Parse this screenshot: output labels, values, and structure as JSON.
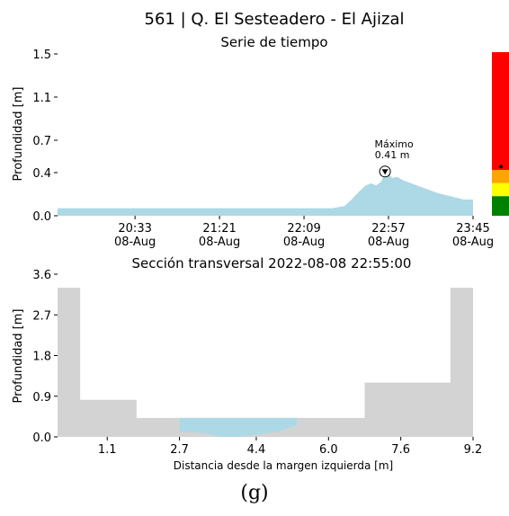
{
  "caption": "(g)",
  "chart_data": [
    {
      "type": "area",
      "title": "561 | Q. El Sesteadero - El Ajizal",
      "subtitle": "Serie de tiempo",
      "ylabel": "Profundidad [m]",
      "xlabel": "",
      "ylim": [
        0,
        1.5
      ],
      "yticks": [
        "0.0",
        "0.4",
        "0.7",
        "1.1",
        "1.5"
      ],
      "xticks": [
        {
          "time": "20:33",
          "date": "08-Aug"
        },
        {
          "time": "21:21",
          "date": "08-Aug"
        },
        {
          "time": "22:09",
          "date": "08-Aug"
        },
        {
          "time": "22:57",
          "date": "08-Aug"
        },
        {
          "time": "23:45",
          "date": "08-Aug"
        }
      ],
      "xlim": [
        "19:49",
        "23:45"
      ],
      "fill_color": "#add8e6",
      "series": [
        {
          "x": [
            "19:49",
            "20:00",
            "20:15",
            "20:30",
            "20:45",
            "21:00",
            "21:15",
            "21:30",
            "21:45",
            "22:00",
            "22:15",
            "22:25",
            "22:32",
            "22:36",
            "22:40",
            "22:44",
            "22:47",
            "22:50",
            "22:53",
            "22:55",
            "22:57",
            "22:59",
            "23:02",
            "23:05",
            "23:10",
            "23:15",
            "23:20",
            "23:25",
            "23:30",
            "23:35",
            "23:40",
            "23:45"
          ],
          "y": [
            0.07,
            0.07,
            0.07,
            0.07,
            0.07,
            0.07,
            0.07,
            0.07,
            0.07,
            0.07,
            0.07,
            0.07,
            0.09,
            0.15,
            0.22,
            0.28,
            0.3,
            0.28,
            0.32,
            0.41,
            0.4,
            0.35,
            0.36,
            0.33,
            0.3,
            0.27,
            0.24,
            0.21,
            0.19,
            0.17,
            0.15,
            0.15
          ]
        }
      ],
      "annotation": {
        "label": "Máximo",
        "value": "0.41 m",
        "x": "22:55",
        "y": 0.41
      }
    },
    {
      "type": "area",
      "title": "Sección transversal 2022-08-08 22:55:00",
      "xlabel": "Distancia desde la margen izquierda [m]",
      "ylabel": "Profundidad [m]",
      "ylim": [
        0,
        3.6
      ],
      "xlim": [
        0,
        9.2
      ],
      "yticks": [
        "0.0",
        "0.9",
        "1.8",
        "2.7",
        "3.6"
      ],
      "xticks": [
        "1.1",
        "2.7",
        "4.4",
        "6.0",
        "7.6",
        "9.2"
      ],
      "terrain_color": "#d3d3d3",
      "water_color": "#add8e6",
      "terrain": {
        "x": [
          0.0,
          0.5,
          0.5,
          1.75,
          1.75,
          6.8,
          6.8,
          8.7,
          8.7,
          9.2
        ],
        "y": [
          3.3,
          3.3,
          0.82,
          0.82,
          0.42,
          0.42,
          1.2,
          1.2,
          3.3,
          3.3
        ]
      },
      "bed": {
        "x": [
          2.7,
          3.3,
          3.6,
          4.0,
          4.5,
          4.9,
          5.3
        ],
        "y": [
          0.12,
          0.08,
          0.0,
          0.0,
          0.06,
          0.12,
          0.25
        ]
      },
      "water_level": 0.42,
      "water_range": [
        2.7,
        5.3
      ]
    }
  ],
  "gauge": {
    "levels": [
      {
        "color": "#008000",
        "from": 0.0,
        "to": 0.12
      },
      {
        "color": "#ffff00",
        "from": 0.12,
        "to": 0.2
      },
      {
        "color": "#ffa500",
        "from": 0.2,
        "to": 0.28
      },
      {
        "color": "#ff0000",
        "from": 0.28,
        "to": 1.0
      }
    ],
    "marker_fraction": 0.3
  }
}
